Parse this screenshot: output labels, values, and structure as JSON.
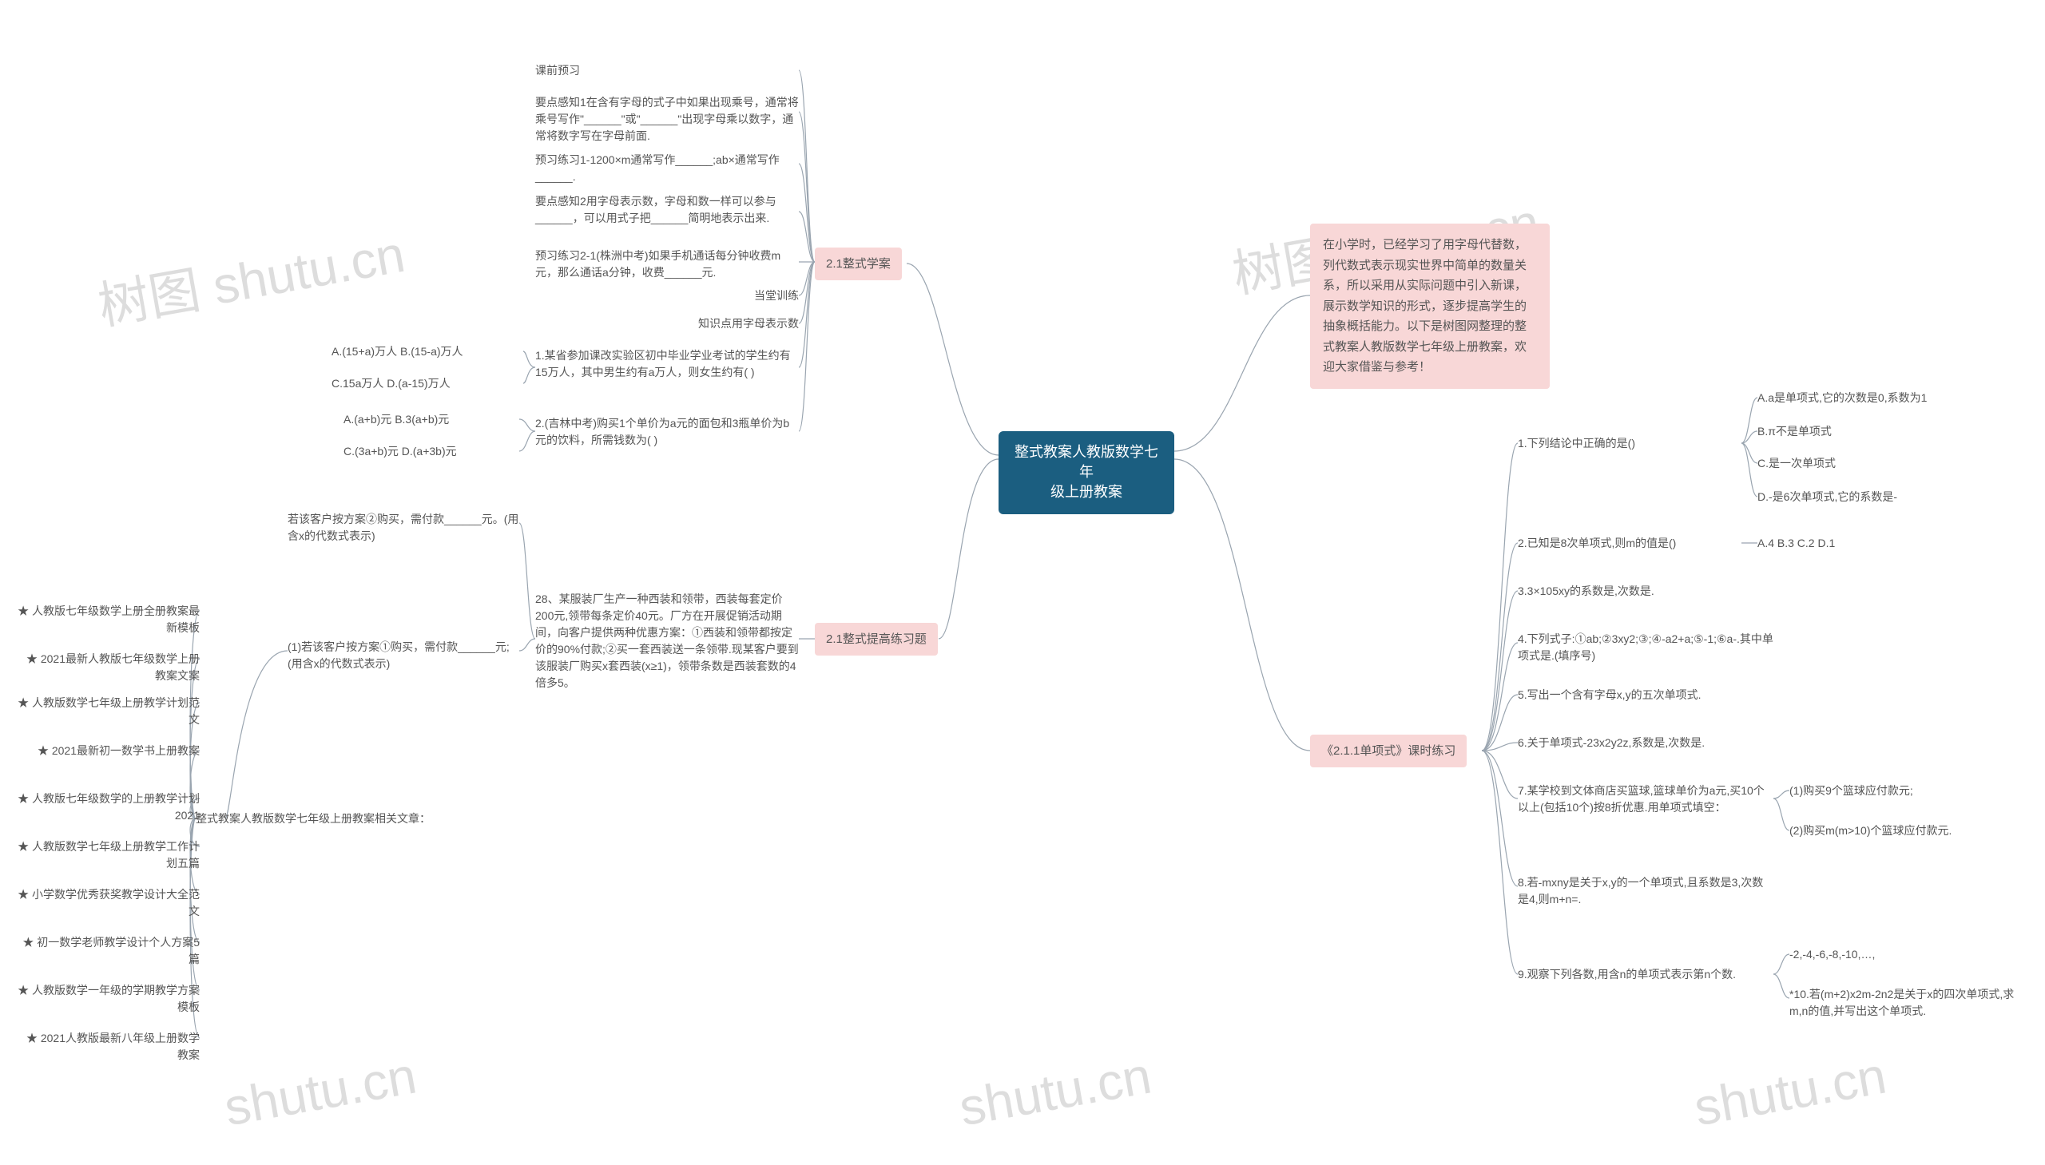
{
  "watermarks": {
    "text1": "树图 shutu.cn",
    "text2": "shutu.cn"
  },
  "center": {
    "label": "整式教案人教版数学七年\n级上册教案",
    "bg": "#1b5e80",
    "color": "#ffffff"
  },
  "intro": {
    "text": "在小学时，已经学习了用字母代替数，列代数式表示现实世界中简单的数量关系，所以采用从实际问题中引入新课，展示数学知识的形式，逐步提高学生的抽象概括能力。以下是树图网整理的整式教案人教版数学七年级上册教案，欢迎大家借鉴与参考！",
    "bg": "#f8d7d7"
  },
  "branches_left": {
    "b1": {
      "label": "2.1整式学案",
      "bg": "#f8d7d7",
      "children": {
        "c1": "课前预习",
        "c2": "要点感知1在含有字母的式子中如果出现乘号，通常将乘号写作\"______\"或\"______\"出现字母乘以数字，通常将数字写在字母前面.",
        "c3": "预习练习1-1200×m通常写作______;ab×通常写作______.",
        "c4": "要点感知2用字母表示数，字母和数一样可以参与______，可以用式子把______简明地表示出来.",
        "c5": "预习练习2-1(株洲中考)如果手机通话每分钟收费m元，那么通话a分钟，收费______元.",
        "c6": "当堂训练",
        "c7": "知识点用字母表示数",
        "c8": {
          "label": "1.某省参加课改实验区初中毕业学业考试的学生约有15万人，其中男生约有a万人，则女生约有(  )",
          "leaves": {
            "l1": "A.(15+a)万人 B.(15-a)万人",
            "l2": "C.15a万人 D.(a-15)万人"
          }
        },
        "c9": {
          "label": "2.(吉林中考)购买1个单价为a元的面包和3瓶单价为b元的饮料，所需钱数为(  )",
          "leaves": {
            "l1": "A.(a+b)元 B.3(a+b)元",
            "l2": "C.(3a+b)元 D.(a+3b)元"
          }
        }
      }
    },
    "b2": {
      "label": "2.1整式提高练习题",
      "bg": "#f8d7d7",
      "child": {
        "label": "28、某服装厂生产一种西装和领带，西装每套定价200元,领带每条定价40元。厂方在开展促销活动期间，向客户提供两种优惠方案：①西装和领带都按定价的90%付款;②买一套西装送一条领带.现某客户要到该服装厂购买x套西装(x≥1)，领带条数是西装套数的4倍多5。",
        "sub": {
          "label": "(1)若该客户按方案①购买，需付款______元;(用含x的代数式表示)",
          "sub2": "若该客户按方案②购买，需付款______元。(用含x的代数式表示)"
        }
      }
    },
    "b3": {
      "label": "整式教案人教版数学七年级上册教案相关文章：",
      "children": {
        "l1": "★ 人教版七年级数学上册全册教案最新模板",
        "l2": "★ 2021最新人教版七年级数学上册教案文案",
        "l3": "★ 人教版数学七年级上册教学计划范文",
        "l4": "★ 2021最新初一数学书上册教案",
        "l5": "★ 人教版七年级数学的上册教学计划2021",
        "l6": "★ 人教版数学七年级上册教学工作计划五篇",
        "l7": "★ 小学数学优秀获奖教学设计大全范文",
        "l8": "★ 初一数学老师教学设计个人方案5篇",
        "l9": "★ 人教版数学一年级的学期教学方案模板",
        "l10": "★ 2021人教版最新八年级上册数学教案"
      }
    }
  },
  "branches_right": {
    "b4": {
      "label": "《2.1.1单项式》课时练习",
      "bg": "#f8d7d7",
      "children": {
        "c1": {
          "label": "1.下列结论中正确的是()",
          "leaves": {
            "l1": "A.a是单项式,它的次数是0,系数为1",
            "l2": "B.π不是单项式",
            "l3": "C.是一次单项式",
            "l4": "D.-是6次单项式,它的系数是-"
          }
        },
        "c2": {
          "label": "2.已知是8次单项式,则m的值是()",
          "leaf": "A.4 B.3 C.2 D.1"
        },
        "c3": "3.3×105xy的系数是,次数是.",
        "c4": "4.下列式子:①ab;②3xy2;③;④-a2+a;⑤-1;⑥a-.其中单项式是.(填序号)",
        "c5": "5.写出一个含有字母x,y的五次单项式.",
        "c6": "6.关于单项式-23x2y2z,系数是,次数是.",
        "c7": {
          "label": "7.某学校到文体商店买篮球,篮球单价为a元,买10个以上(包括10个)按8折优惠.用单项式填空：",
          "leaves": {
            "l1": "(1)购买9个篮球应付款元;",
            "l2": "(2)购买m(m>10)个篮球应付款元."
          }
        },
        "c8": "8.若-mxny是关于x,y的一个单项式,且系数是3,次数是4,则m+n=.",
        "c9": {
          "label": "9.观察下列各数,用含n的单项式表示第n个数.",
          "leaves": {
            "l1": "-2,-4,-6,-8,-10,…,",
            "l2": "*10.若(m+2)x2m-2n2是关于x的四次单项式,求m,n的值,并写出这个单项式."
          }
        }
      }
    }
  },
  "colors": {
    "line": "#9aa5b0",
    "text": "#555555"
  }
}
